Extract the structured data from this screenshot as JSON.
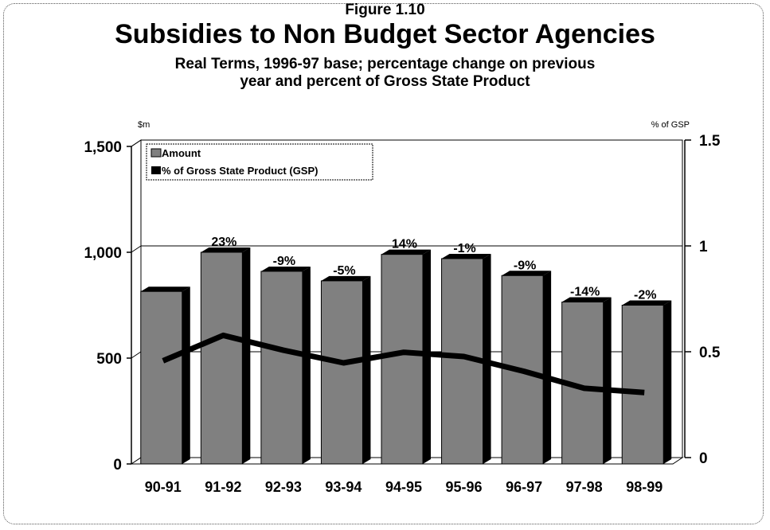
{
  "figure_label": "Figure 1.10",
  "chart_data": {
    "type": "bar",
    "title": "Subsidies to Non Budget Sector Agencies",
    "subtitle_lines": [
      "Real Terms, 1996-97 base; percentage change on previous",
      "year and percent of Gross State Product"
    ],
    "categories": [
      "90-91",
      "91-92",
      "92-93",
      "93-94",
      "94-95",
      "95-96",
      "96-97",
      "97-98",
      "98-99"
    ],
    "series": [
      {
        "name": "Amount",
        "type": "bar",
        "axis": "left",
        "values": [
          815,
          1000,
          910,
          865,
          990,
          970,
          890,
          765,
          750
        ],
        "color": "#808080"
      },
      {
        "name": "% of Gross State Product (GSP)",
        "type": "line",
        "axis": "right",
        "values": [
          0.51,
          0.63,
          0.56,
          0.5,
          0.55,
          0.53,
          0.46,
          0.38,
          0.36
        ],
        "color": "#000000"
      }
    ],
    "bar_labels": [
      "",
      "23%",
      "-9%",
      "-5%",
      "14%",
      "-1%",
      "-9%",
      "-14%",
      "-2%"
    ],
    "left_axis": {
      "unit_label": "$m",
      "ticks": [
        "0",
        "500",
        "1,000",
        "1,500"
      ],
      "tick_values": [
        0,
        500,
        1000,
        1500
      ],
      "ylim": [
        0,
        1500
      ]
    },
    "right_axis": {
      "unit_label": "% of GSP",
      "ticks": [
        "0",
        "0.5",
        "1",
        "1.5"
      ],
      "tick_values": [
        0,
        0.5,
        1,
        1.5
      ],
      "ylim": [
        0,
        1.5
      ]
    },
    "grid": true,
    "legend_position": "top-left"
  }
}
